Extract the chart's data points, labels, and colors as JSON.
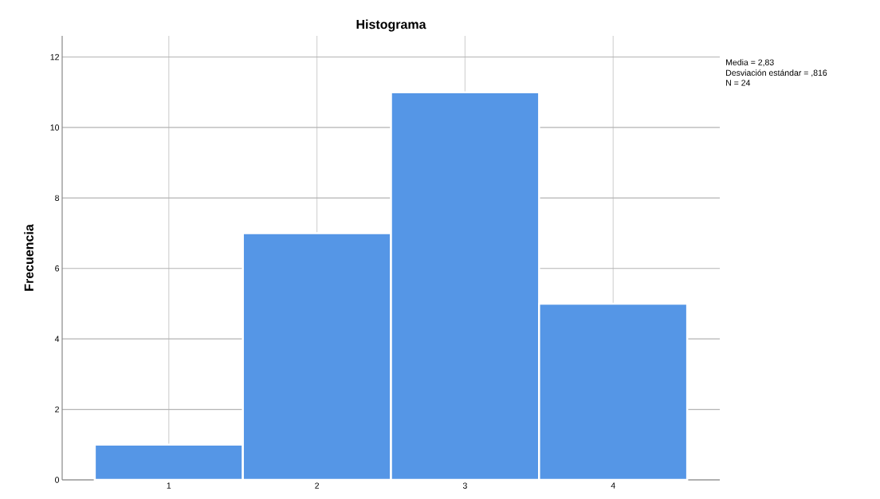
{
  "chart_data": {
    "type": "histogram",
    "title": "Histograma",
    "ylabel": "Frecuencia",
    "bins": [
      0.5,
      1.5,
      2.5,
      3.5,
      4.5
    ],
    "values": [
      1,
      7,
      11,
      5
    ],
    "color": "#5596e6",
    "xlim": [
      0.28,
      4.72
    ],
    "ylim": [
      0,
      12.6
    ],
    "xticks": [
      1,
      2,
      3,
      4
    ],
    "yticks": [
      0,
      2,
      4,
      6,
      8,
      10,
      12
    ],
    "grid": true,
    "annotations": [
      "Media = 2,83",
      "Desviación estándar = ,816",
      "N = 24"
    ]
  }
}
